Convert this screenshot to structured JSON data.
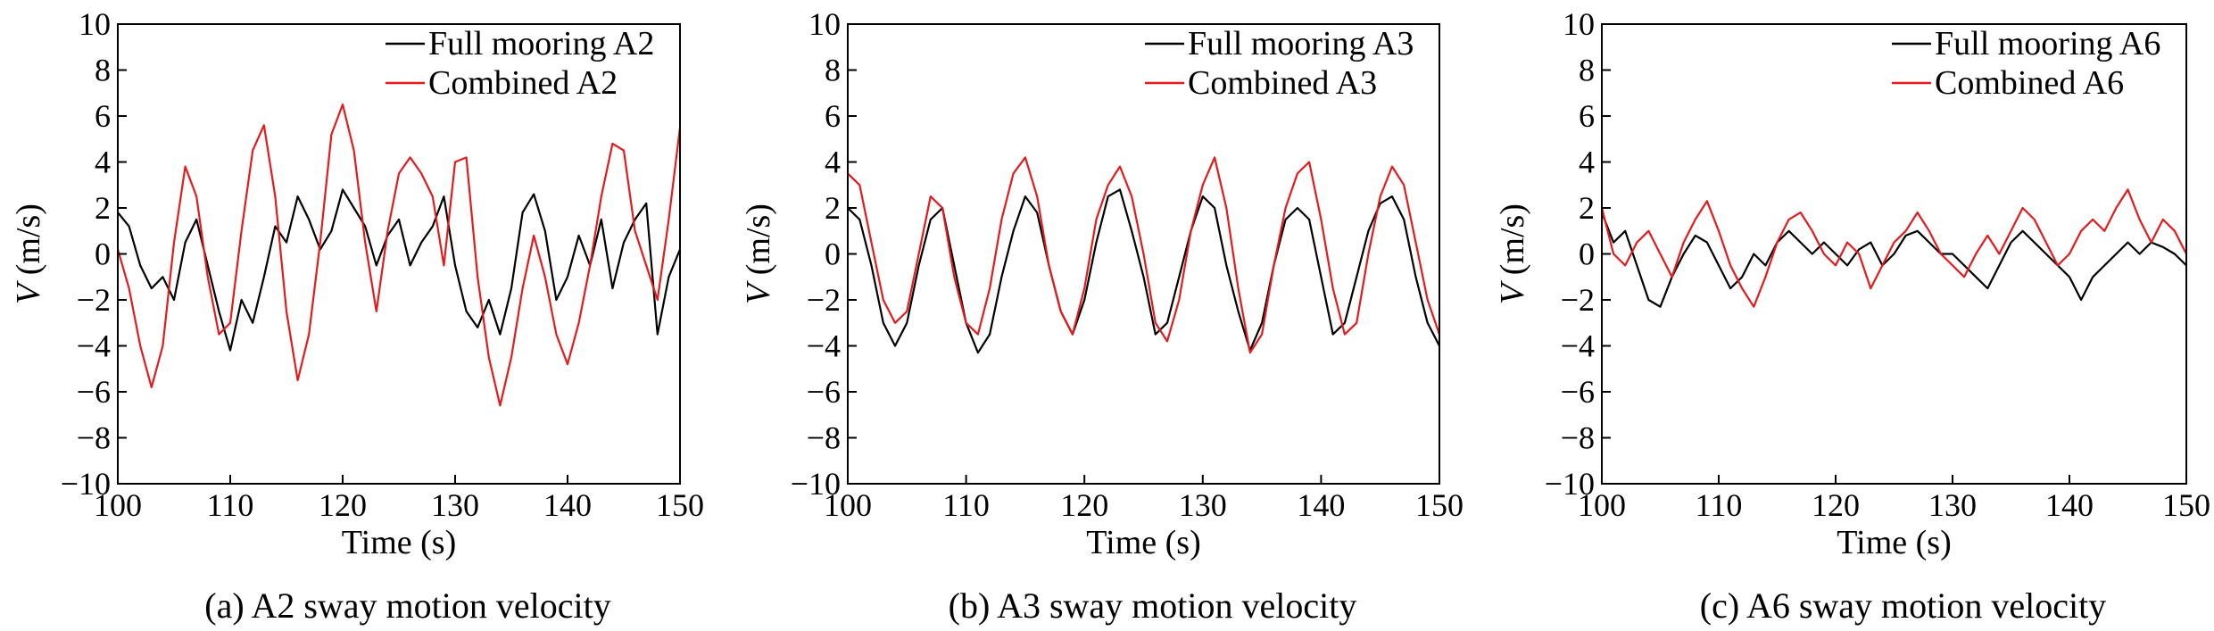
{
  "chart_data": [
    {
      "type": "line",
      "caption": "(a) A2 sway motion velocity",
      "xlabel": "Time (s)",
      "ylabel_var": "V",
      "ylabel_unit": " (m/s)",
      "xlim": [
        100,
        150
      ],
      "ylim": [
        -10,
        10
      ],
      "xticks": [
        100,
        110,
        120,
        130,
        140,
        150
      ],
      "yticks": [
        -10,
        -8,
        -6,
        -4,
        -2,
        0,
        2,
        4,
        6,
        8,
        10
      ],
      "xtick_labels": [
        "100",
        "110",
        "120",
        "130",
        "140",
        "150"
      ],
      "ytick_labels": [
        "−10",
        "−8",
        "−6",
        "−4",
        "−2",
        "0",
        "2",
        "4",
        "6",
        "8",
        "10"
      ],
      "legend_position": "top-right",
      "series": [
        {
          "name": "Full mooring A2",
          "color": "#000000",
          "x": [
            100,
            101,
            102,
            103,
            104,
            105,
            106,
            107,
            108,
            109,
            110,
            111,
            112,
            113,
            114,
            115,
            116,
            117,
            118,
            119,
            120,
            121,
            122,
            123,
            124,
            125,
            126,
            127,
            128,
            129,
            130,
            131,
            132,
            133,
            134,
            135,
            136,
            137,
            138,
            139,
            140,
            141,
            142,
            143,
            144,
            145,
            146,
            147,
            148,
            149,
            150
          ],
          "values": [
            1.8,
            1.2,
            -0.5,
            -1.5,
            -1.0,
            -2.0,
            0.5,
            1.5,
            -0.5,
            -2.5,
            -4.2,
            -2.0,
            -3.0,
            -1.0,
            1.2,
            0.5,
            2.5,
            1.5,
            0.2,
            1.0,
            2.8,
            2.0,
            1.2,
            -0.5,
            0.8,
            1.5,
            -0.5,
            0.5,
            1.2,
            2.5,
            -0.5,
            -2.5,
            -3.2,
            -2.0,
            -3.5,
            -1.5,
            1.8,
            2.6,
            1.0,
            -2.0,
            -1.0,
            0.8,
            -0.5,
            1.5,
            -1.5,
            0.5,
            1.5,
            2.2,
            -3.5,
            -1.0,
            0.2
          ]
        },
        {
          "name": "Combined A2",
          "color": "#e41a1c",
          "x": [
            100,
            101,
            102,
            103,
            104,
            105,
            106,
            107,
            108,
            109,
            110,
            111,
            112,
            113,
            114,
            115,
            116,
            117,
            118,
            119,
            120,
            121,
            122,
            123,
            124,
            125,
            126,
            127,
            128,
            129,
            130,
            131,
            132,
            133,
            134,
            135,
            136,
            137,
            138,
            139,
            140,
            141,
            142,
            143,
            144,
            145,
            146,
            147,
            148,
            149,
            150
          ],
          "values": [
            0.2,
            -1.5,
            -4.0,
            -5.8,
            -4.0,
            0.5,
            3.8,
            2.5,
            -1.0,
            -3.5,
            -3.0,
            1.0,
            4.5,
            5.6,
            2.5,
            -2.5,
            -5.5,
            -3.5,
            0.5,
            5.2,
            6.5,
            4.5,
            0.5,
            -2.5,
            1.0,
            3.5,
            4.2,
            3.5,
            2.5,
            -0.5,
            4.0,
            4.2,
            -1.0,
            -4.5,
            -6.6,
            -4.5,
            -1.5,
            0.8,
            -1.0,
            -3.5,
            -4.8,
            -3.0,
            -0.5,
            2.5,
            4.8,
            4.5,
            1.0,
            -0.5,
            -2.0,
            1.5,
            5.5
          ]
        }
      ]
    },
    {
      "type": "line",
      "caption": "(b) A3 sway motion velocity",
      "xlabel": "Time (s)",
      "ylabel_var": "V",
      "ylabel_unit": " (m/s)",
      "xlim": [
        100,
        150
      ],
      "ylim": [
        -10,
        10
      ],
      "xticks": [
        100,
        110,
        120,
        130,
        140,
        150
      ],
      "yticks": [
        -10,
        -8,
        -6,
        -4,
        -2,
        0,
        2,
        4,
        6,
        8,
        10
      ],
      "xtick_labels": [
        "100",
        "110",
        "120",
        "130",
        "140",
        "150"
      ],
      "ytick_labels": [
        "−10",
        "−8",
        "−6",
        "−4",
        "−2",
        "0",
        "2",
        "4",
        "6",
        "8",
        "10"
      ],
      "legend_position": "top-right",
      "series": [
        {
          "name": "Full mooring A3",
          "color": "#000000",
          "x": [
            100,
            101,
            102,
            103,
            104,
            105,
            106,
            107,
            108,
            109,
            110,
            111,
            112,
            113,
            114,
            115,
            116,
            117,
            118,
            119,
            120,
            121,
            122,
            123,
            124,
            125,
            126,
            127,
            128,
            129,
            130,
            131,
            132,
            133,
            134,
            135,
            136,
            137,
            138,
            139,
            140,
            141,
            142,
            143,
            144,
            145,
            146,
            147,
            148,
            149,
            150
          ],
          "values": [
            2.0,
            1.5,
            -0.5,
            -3.0,
            -4.0,
            -3.0,
            -0.5,
            1.5,
            2.0,
            -0.5,
            -3.0,
            -4.3,
            -3.5,
            -1.0,
            1.0,
            2.5,
            1.8,
            -0.5,
            -2.5,
            -3.5,
            -2.0,
            0.5,
            2.5,
            2.8,
            1.0,
            -1.0,
            -3.5,
            -3.0,
            -1.0,
            1.0,
            2.5,
            2.0,
            -0.5,
            -2.5,
            -4.2,
            -3.0,
            -0.5,
            1.5,
            2.0,
            1.5,
            -1.0,
            -3.5,
            -3.0,
            -1.0,
            1.0,
            2.2,
            2.5,
            1.5,
            -1.0,
            -3.0,
            -4.0
          ]
        },
        {
          "name": "Combined A3",
          "color": "#e41a1c",
          "x": [
            100,
            101,
            102,
            103,
            104,
            105,
            106,
            107,
            108,
            109,
            110,
            111,
            112,
            113,
            114,
            115,
            116,
            117,
            118,
            119,
            120,
            121,
            122,
            123,
            124,
            125,
            126,
            127,
            128,
            129,
            130,
            131,
            132,
            133,
            134,
            135,
            136,
            137,
            138,
            139,
            140,
            141,
            142,
            143,
            144,
            145,
            146,
            147,
            148,
            149,
            150
          ],
          "values": [
            3.5,
            3.0,
            0.5,
            -2.0,
            -3.0,
            -2.5,
            0.0,
            2.5,
            2.0,
            -1.0,
            -3.0,
            -3.5,
            -1.5,
            1.5,
            3.5,
            4.2,
            2.5,
            -0.5,
            -2.5,
            -3.5,
            -1.5,
            1.5,
            3.0,
            3.8,
            2.5,
            0.0,
            -3.0,
            -3.8,
            -2.0,
            1.0,
            3.0,
            4.2,
            2.0,
            -1.5,
            -4.3,
            -3.5,
            -0.5,
            2.0,
            3.5,
            4.0,
            1.5,
            -1.5,
            -3.5,
            -3.0,
            0.0,
            2.5,
            3.8,
            3.0,
            0.5,
            -2.0,
            -3.5
          ]
        }
      ]
    },
    {
      "type": "line",
      "caption": "(c) A6 sway motion velocity",
      "xlabel": "Time (s)",
      "ylabel_var": "V",
      "ylabel_unit": " (m/s)",
      "xlim": [
        100,
        150
      ],
      "ylim": [
        -10,
        10
      ],
      "xticks": [
        100,
        110,
        120,
        130,
        140,
        150
      ],
      "yticks": [
        -10,
        -8,
        -6,
        -4,
        -2,
        0,
        2,
        4,
        6,
        8,
        10
      ],
      "xtick_labels": [
        "100",
        "110",
        "120",
        "130",
        "140",
        "150"
      ],
      "ytick_labels": [
        "−10",
        "−8",
        "−6",
        "−4",
        "−2",
        "0",
        "2",
        "4",
        "6",
        "8",
        "10"
      ],
      "legend_position": "top-right",
      "series": [
        {
          "name": "Full mooring A6",
          "color": "#000000",
          "x": [
            100,
            101,
            102,
            103,
            104,
            105,
            106,
            107,
            108,
            109,
            110,
            111,
            112,
            113,
            114,
            115,
            116,
            117,
            118,
            119,
            120,
            121,
            122,
            123,
            124,
            125,
            126,
            127,
            128,
            129,
            130,
            131,
            132,
            133,
            134,
            135,
            136,
            137,
            138,
            139,
            140,
            141,
            142,
            143,
            144,
            145,
            146,
            147,
            148,
            149,
            150
          ],
          "values": [
            1.8,
            0.5,
            1.0,
            -0.5,
            -2.0,
            -2.3,
            -1.0,
            0.0,
            0.8,
            0.5,
            -0.5,
            -1.5,
            -1.0,
            0.0,
            -0.5,
            0.5,
            1.0,
            0.5,
            0.0,
            0.5,
            0.0,
            -0.5,
            0.2,
            0.5,
            -0.5,
            0.0,
            0.8,
            1.0,
            0.5,
            0.0,
            0.0,
            -0.5,
            -1.0,
            -1.5,
            -0.5,
            0.5,
            1.0,
            0.5,
            0.0,
            -0.5,
            -1.0,
            -2.0,
            -1.0,
            -0.5,
            0.0,
            0.5,
            0.0,
            0.5,
            0.3,
            0.0,
            -0.5
          ]
        },
        {
          "name": "Combined A6",
          "color": "#e41a1c",
          "x": [
            100,
            101,
            102,
            103,
            104,
            105,
            106,
            107,
            108,
            109,
            110,
            111,
            112,
            113,
            114,
            115,
            116,
            117,
            118,
            119,
            120,
            121,
            122,
            123,
            124,
            125,
            126,
            127,
            128,
            129,
            130,
            131,
            132,
            133,
            134,
            135,
            136,
            137,
            138,
            139,
            140,
            141,
            142,
            143,
            144,
            145,
            146,
            147,
            148,
            149,
            150
          ],
          "values": [
            2.0,
            0.0,
            -0.5,
            0.5,
            1.0,
            0.0,
            -1.0,
            0.5,
            1.5,
            2.3,
            1.0,
            -0.5,
            -1.5,
            -2.3,
            -1.0,
            0.5,
            1.5,
            1.8,
            1.0,
            0.0,
            -0.5,
            0.5,
            0.0,
            -1.5,
            -0.5,
            0.5,
            1.0,
            1.8,
            1.0,
            0.0,
            -0.5,
            -1.0,
            0.0,
            0.8,
            0.0,
            1.0,
            2.0,
            1.5,
            0.5,
            -0.5,
            0.0,
            1.0,
            1.5,
            1.0,
            2.0,
            2.8,
            1.5,
            0.5,
            1.5,
            1.0,
            0.0
          ]
        }
      ]
    }
  ]
}
